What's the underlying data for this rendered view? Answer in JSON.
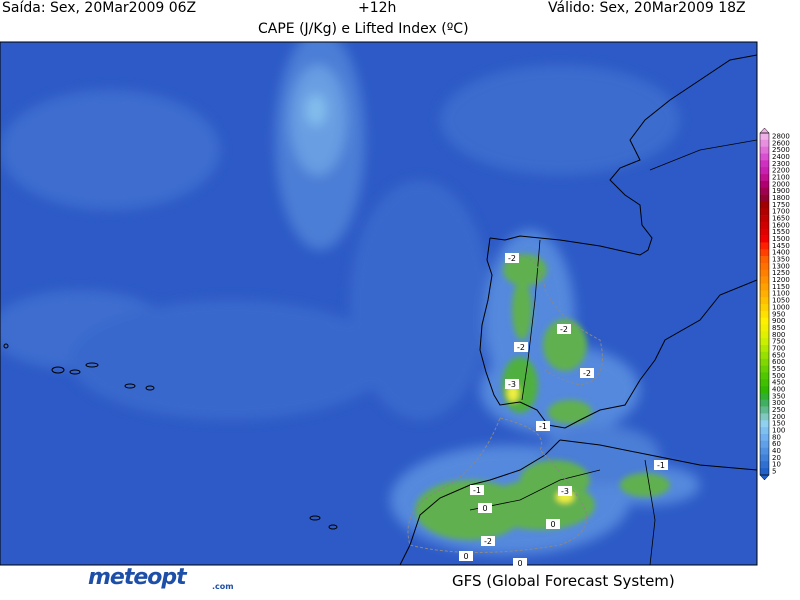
{
  "header": {
    "issued": "Saída: Sex, 20Mar2009 06Z",
    "lead": "+12h",
    "valid": "Válido: Sex, 20Mar2009 18Z",
    "title": "CAPE (J/Kg) e Lifted Index (ºC)"
  },
  "colorbar": {
    "levels": [
      2800,
      2600,
      2500,
      2400,
      2300,
      2200,
      2100,
      2000,
      1900,
      1800,
      1750,
      1700,
      1650,
      1600,
      1550,
      1500,
      1450,
      1400,
      1350,
      1300,
      1250,
      1200,
      1150,
      1100,
      1050,
      1000,
      950,
      900,
      850,
      800,
      750,
      700,
      650,
      600,
      550,
      500,
      450,
      400,
      350,
      300,
      250,
      200,
      150,
      100,
      80,
      60,
      40,
      20,
      10,
      5
    ],
    "colors": [
      "#f0b0e8",
      "#e890e0",
      "#e070d8",
      "#d850d0",
      "#d030c0",
      "#c820b0",
      "#c01090",
      "#b00070",
      "#a00050",
      "#900030",
      "#a00000",
      "#b00000",
      "#c00000",
      "#d00000",
      "#e00000",
      "#f00000",
      "#ff2000",
      "#ff4000",
      "#ff6000",
      "#ff7000",
      "#ff8000",
      "#ff9000",
      "#ffa000",
      "#ffb000",
      "#ffc000",
      "#ffd000",
      "#ffe000",
      "#fff000",
      "#f0f000",
      "#e0f000",
      "#c8f000",
      "#b0e800",
      "#98e000",
      "#80d800",
      "#68d000",
      "#50c800",
      "#40c000",
      "#30b800",
      "#30b030",
      "#40b060",
      "#60b890",
      "#80c8c0",
      "#90d0f0",
      "#80c0f0",
      "#70b0f0",
      "#60a0e8",
      "#5090e0",
      "#4080d8",
      "#3070d0",
      "#2060c8"
    ]
  },
  "map": {
    "contour_labels": [
      "-2",
      "-2",
      "-2",
      "-2",
      "-3",
      "-1",
      "-1",
      "-1",
      "-3",
      "0",
      "0",
      "-2",
      "0",
      "0"
    ]
  },
  "footer": {
    "logo": "meteopt",
    "logo_suffix": ".com",
    "model": "GFS (Global Forecast System)"
  }
}
